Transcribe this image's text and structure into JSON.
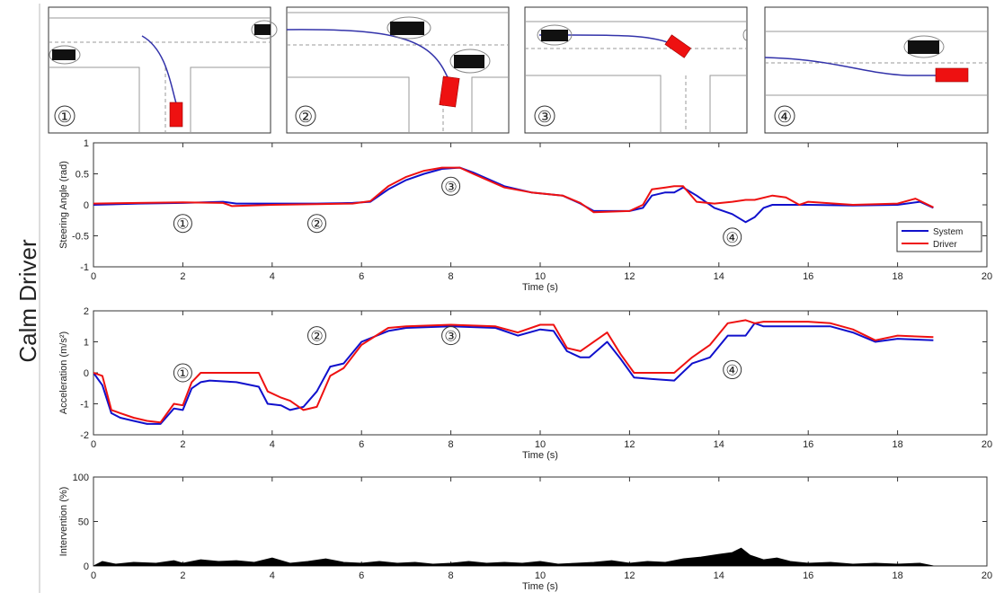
{
  "figure": {
    "row_label": "Calm Driver",
    "panel_labels": [
      "①",
      "②",
      "③",
      "④"
    ]
  },
  "colors": {
    "system": "#1010cc",
    "driver": "#ee1111",
    "intervention": "#000000",
    "grid_frame": "#333333",
    "road_line": "#999999",
    "trajectory": "#3333aa",
    "ego_car": "#ee1111",
    "other_car": "#111111"
  },
  "chart_data": [
    {
      "type": "line",
      "ylabel": "Steering Angle (rad)",
      "xlabel": "Time (s)",
      "xlim": [
        0,
        20
      ],
      "ylim": [
        -1,
        1
      ],
      "xticks": [
        0,
        2,
        4,
        6,
        8,
        10,
        12,
        14,
        16,
        18,
        20
      ],
      "yticks": [
        -1,
        -0.5,
        0,
        0.5,
        1
      ],
      "legend": {
        "position": "right",
        "entries": [
          "System",
          "Driver"
        ]
      },
      "annotations": [
        {
          "text": "①",
          "x": 2.0,
          "y": -0.3
        },
        {
          "text": "②",
          "x": 5.0,
          "y": -0.3
        },
        {
          "text": "③",
          "x": 8.0,
          "y": 0.3
        },
        {
          "text": "④",
          "x": 14.3,
          "y": -0.52
        }
      ],
      "series": [
        {
          "name": "System",
          "color_key": "system",
          "x": [
            0,
            1,
            2,
            2.9,
            3.2,
            4,
            5,
            5.8,
            6.2,
            6.6,
            7,
            7.4,
            7.8,
            8.2,
            8.5,
            9.2,
            9.8,
            10.5,
            10.9,
            11.2,
            12,
            12.3,
            12.5,
            12.8,
            13.0,
            13.2,
            13.5,
            13.9,
            14.3,
            14.6,
            14.8,
            15.0,
            15.2,
            15.6,
            16,
            17,
            18,
            18.5,
            18.8
          ],
          "y": [
            0,
            0.02,
            0.03,
            0.05,
            0.02,
            0.02,
            0.02,
            0.03,
            0.05,
            0.25,
            0.4,
            0.5,
            0.58,
            0.6,
            0.52,
            0.3,
            0.2,
            0.15,
            0.02,
            -0.1,
            -0.1,
            -0.05,
            0.15,
            0.2,
            0.2,
            0.28,
            0.15,
            -0.05,
            -0.15,
            -0.28,
            -0.2,
            -0.05,
            0.0,
            0.0,
            0.0,
            -0.01,
            0.0,
            0.05,
            -0.05
          ]
        },
        {
          "name": "Driver",
          "color_key": "driver",
          "x": [
            0,
            1,
            2,
            2.9,
            3.1,
            4,
            5,
            5.8,
            6.2,
            6.6,
            7,
            7.4,
            7.8,
            8.2,
            8.5,
            9.2,
            9.8,
            10.5,
            10.9,
            11.2,
            12,
            12.3,
            12.5,
            12.8,
            13.0,
            13.2,
            13.5,
            13.9,
            14.3,
            14.6,
            14.8,
            15.2,
            15.5,
            15.8,
            16,
            17,
            18,
            18.4,
            18.8
          ],
          "y": [
            0.02,
            0.03,
            0.04,
            0.03,
            -0.02,
            0.0,
            0.01,
            0.02,
            0.06,
            0.3,
            0.45,
            0.55,
            0.6,
            0.6,
            0.5,
            0.28,
            0.2,
            0.15,
            0.03,
            -0.12,
            -0.1,
            0.0,
            0.25,
            0.28,
            0.3,
            0.3,
            0.05,
            0.02,
            0.05,
            0.08,
            0.08,
            0.15,
            0.12,
            0.0,
            0.05,
            0.0,
            0.02,
            0.1,
            -0.04
          ]
        }
      ]
    },
    {
      "type": "line",
      "ylabel": "Acceleration (m/s²)",
      "xlabel": "Time (s)",
      "xlim": [
        0,
        20
      ],
      "ylim": [
        -2,
        2
      ],
      "xticks": [
        0,
        2,
        4,
        6,
        8,
        10,
        12,
        14,
        16,
        18,
        20
      ],
      "yticks": [
        -2,
        -1,
        0,
        1,
        2
      ],
      "annotations": [
        {
          "text": "①",
          "x": 2.0,
          "y": 0.0
        },
        {
          "text": "②",
          "x": 5.0,
          "y": 1.2
        },
        {
          "text": "③",
          "x": 8.0,
          "y": 1.2
        },
        {
          "text": "④",
          "x": 14.3,
          "y": 0.1
        }
      ],
      "series": [
        {
          "name": "System",
          "color_key": "system",
          "x": [
            0,
            0.2,
            0.4,
            0.6,
            0.9,
            1.2,
            1.5,
            1.8,
            2.0,
            2.2,
            2.4,
            2.6,
            3.2,
            3.7,
            3.9,
            4.2,
            4.4,
            4.7,
            5.0,
            5.3,
            5.6,
            6.0,
            6.6,
            7.0,
            8.0,
            9.0,
            9.5,
            10.0,
            10.3,
            10.6,
            10.9,
            11.1,
            11.5,
            11.8,
            12.1,
            12.5,
            13.0,
            13.4,
            13.8,
            14.2,
            14.6,
            14.8,
            15.0,
            15.5,
            16.0,
            16.5,
            17.0,
            17.5,
            18.0,
            18.8
          ],
          "y": [
            0,
            -0.4,
            -1.3,
            -1.45,
            -1.55,
            -1.65,
            -1.65,
            -1.15,
            -1.2,
            -0.5,
            -0.3,
            -0.25,
            -0.3,
            -0.45,
            -1.0,
            -1.05,
            -1.2,
            -1.1,
            -0.6,
            0.2,
            0.3,
            1.0,
            1.35,
            1.45,
            1.5,
            1.45,
            1.2,
            1.4,
            1.35,
            0.7,
            0.5,
            0.5,
            1.0,
            0.45,
            -0.15,
            -0.2,
            -0.25,
            0.3,
            0.5,
            1.2,
            1.2,
            1.6,
            1.5,
            1.5,
            1.5,
            1.5,
            1.3,
            1.0,
            1.1,
            1.05
          ]
        },
        {
          "name": "Driver",
          "color_key": "driver",
          "x": [
            0,
            0.2,
            0.4,
            0.6,
            0.9,
            1.2,
            1.5,
            1.8,
            2.0,
            2.2,
            2.4,
            2.6,
            3.2,
            3.7,
            3.9,
            4.2,
            4.4,
            4.7,
            5.0,
            5.3,
            5.6,
            6.0,
            6.6,
            7.0,
            8.0,
            9.0,
            9.5,
            10.0,
            10.3,
            10.6,
            10.9,
            11.1,
            11.5,
            11.8,
            12.1,
            12.5,
            13.0,
            13.4,
            13.8,
            14.2,
            14.6,
            14.8,
            15.0,
            15.5,
            16.0,
            16.5,
            17.0,
            17.5,
            18.0,
            18.8
          ],
          "y": [
            0,
            -0.1,
            -1.2,
            -1.3,
            -1.45,
            -1.55,
            -1.6,
            -1.0,
            -1.05,
            -0.3,
            0.0,
            0.0,
            0.0,
            0.0,
            -0.6,
            -0.8,
            -0.9,
            -1.2,
            -1.1,
            -0.1,
            0.15,
            0.9,
            1.45,
            1.5,
            1.55,
            1.5,
            1.3,
            1.55,
            1.55,
            0.8,
            0.7,
            0.9,
            1.3,
            0.6,
            0.0,
            0.0,
            0.0,
            0.5,
            0.9,
            1.6,
            1.7,
            1.6,
            1.65,
            1.65,
            1.65,
            1.6,
            1.4,
            1.05,
            1.2,
            1.15
          ]
        }
      ]
    },
    {
      "type": "area",
      "ylabel": "Intervention (%)",
      "xlabel": "Time (s)",
      "xlim": [
        0,
        20
      ],
      "ylim": [
        0,
        100
      ],
      "xticks": [
        0,
        2,
        4,
        6,
        8,
        10,
        12,
        14,
        16,
        18,
        20
      ],
      "yticks": [
        0,
        50,
        100
      ],
      "series": [
        {
          "name": "",
          "color_key": "intervention",
          "x": [
            0,
            0.2,
            0.5,
            0.9,
            1.4,
            1.8,
            2.0,
            2.4,
            2.8,
            3.2,
            3.6,
            4.0,
            4.4,
            4.8,
            5.2,
            5.6,
            6.0,
            6.4,
            6.8,
            7.2,
            7.6,
            8.0,
            8.4,
            8.8,
            9.2,
            9.6,
            10.0,
            10.4,
            10.8,
            11.2,
            11.6,
            12.0,
            12.4,
            12.8,
            13.2,
            13.6,
            14.0,
            14.3,
            14.5,
            14.7,
            15.0,
            15.3,
            15.6,
            16.0,
            16.5,
            17.0,
            17.5,
            18.0,
            18.5,
            18.8
          ],
          "y": [
            0,
            5,
            2,
            4,
            3,
            6,
            3,
            7,
            5,
            6,
            4,
            9,
            3,
            5,
            8,
            4,
            3,
            5,
            3,
            4,
            2,
            3,
            5,
            3,
            4,
            3,
            5,
            2,
            3,
            4,
            6,
            3,
            5,
            4,
            8,
            10,
            13,
            15,
            20,
            12,
            7,
            9,
            5,
            3,
            4,
            2,
            3,
            2,
            3,
            0
          ]
        }
      ]
    }
  ]
}
